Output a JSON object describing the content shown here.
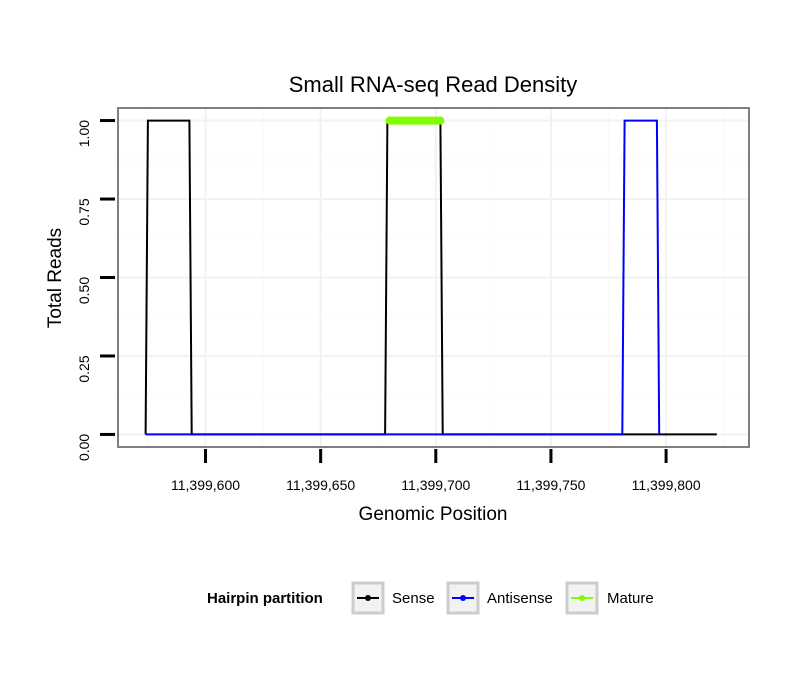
{
  "chart_data": {
    "type": "line",
    "title": "Small RNA-seq Read Density",
    "xlabel": "Genomic Position",
    "ylabel": "Total Reads",
    "xlim": [
      11399562,
      11399836
    ],
    "ylim": [
      -0.04,
      1.04
    ],
    "x_ticks": [
      11399600,
      11399650,
      11399700,
      11399750,
      11399800
    ],
    "x_tick_labels": [
      "11,399,600",
      "11,399,650",
      "11,399,700",
      "11,399,750",
      "11,399,800"
    ],
    "y_ticks": [
      0,
      0.25,
      0.5,
      0.75,
      1
    ],
    "y_tick_labels": [
      "0.00",
      "0.25",
      "0.50",
      "0.75",
      "1.00"
    ],
    "grid": true,
    "legend": {
      "title": "Hairpin partition",
      "position": "bottom",
      "entries": [
        {
          "name": "Sense",
          "color": "#000000"
        },
        {
          "name": "Antisense",
          "color": "#0000ff"
        },
        {
          "name": "Mature",
          "color": "#7fff00"
        }
      ]
    },
    "series": [
      {
        "name": "Sense",
        "color": "#000000",
        "x": [
          11399574,
          11399575,
          11399593,
          11399594,
          11399678,
          11399679,
          11399702,
          11399703,
          11399822
        ],
        "y": [
          0,
          1,
          1,
          0,
          0,
          1,
          1,
          0,
          0
        ]
      },
      {
        "name": "Antisense",
        "color": "#0000ff",
        "x": [
          11399574,
          11399593,
          11399678,
          11399703,
          11399781,
          11399782,
          11399796,
          11399797
        ],
        "y": [
          0,
          0,
          0,
          0,
          0,
          1,
          1,
          0
        ]
      },
      {
        "name": "Mature",
        "color": "#7fff00",
        "x": [
          11399680,
          11399702
        ],
        "y": [
          1,
          1
        ]
      }
    ]
  }
}
